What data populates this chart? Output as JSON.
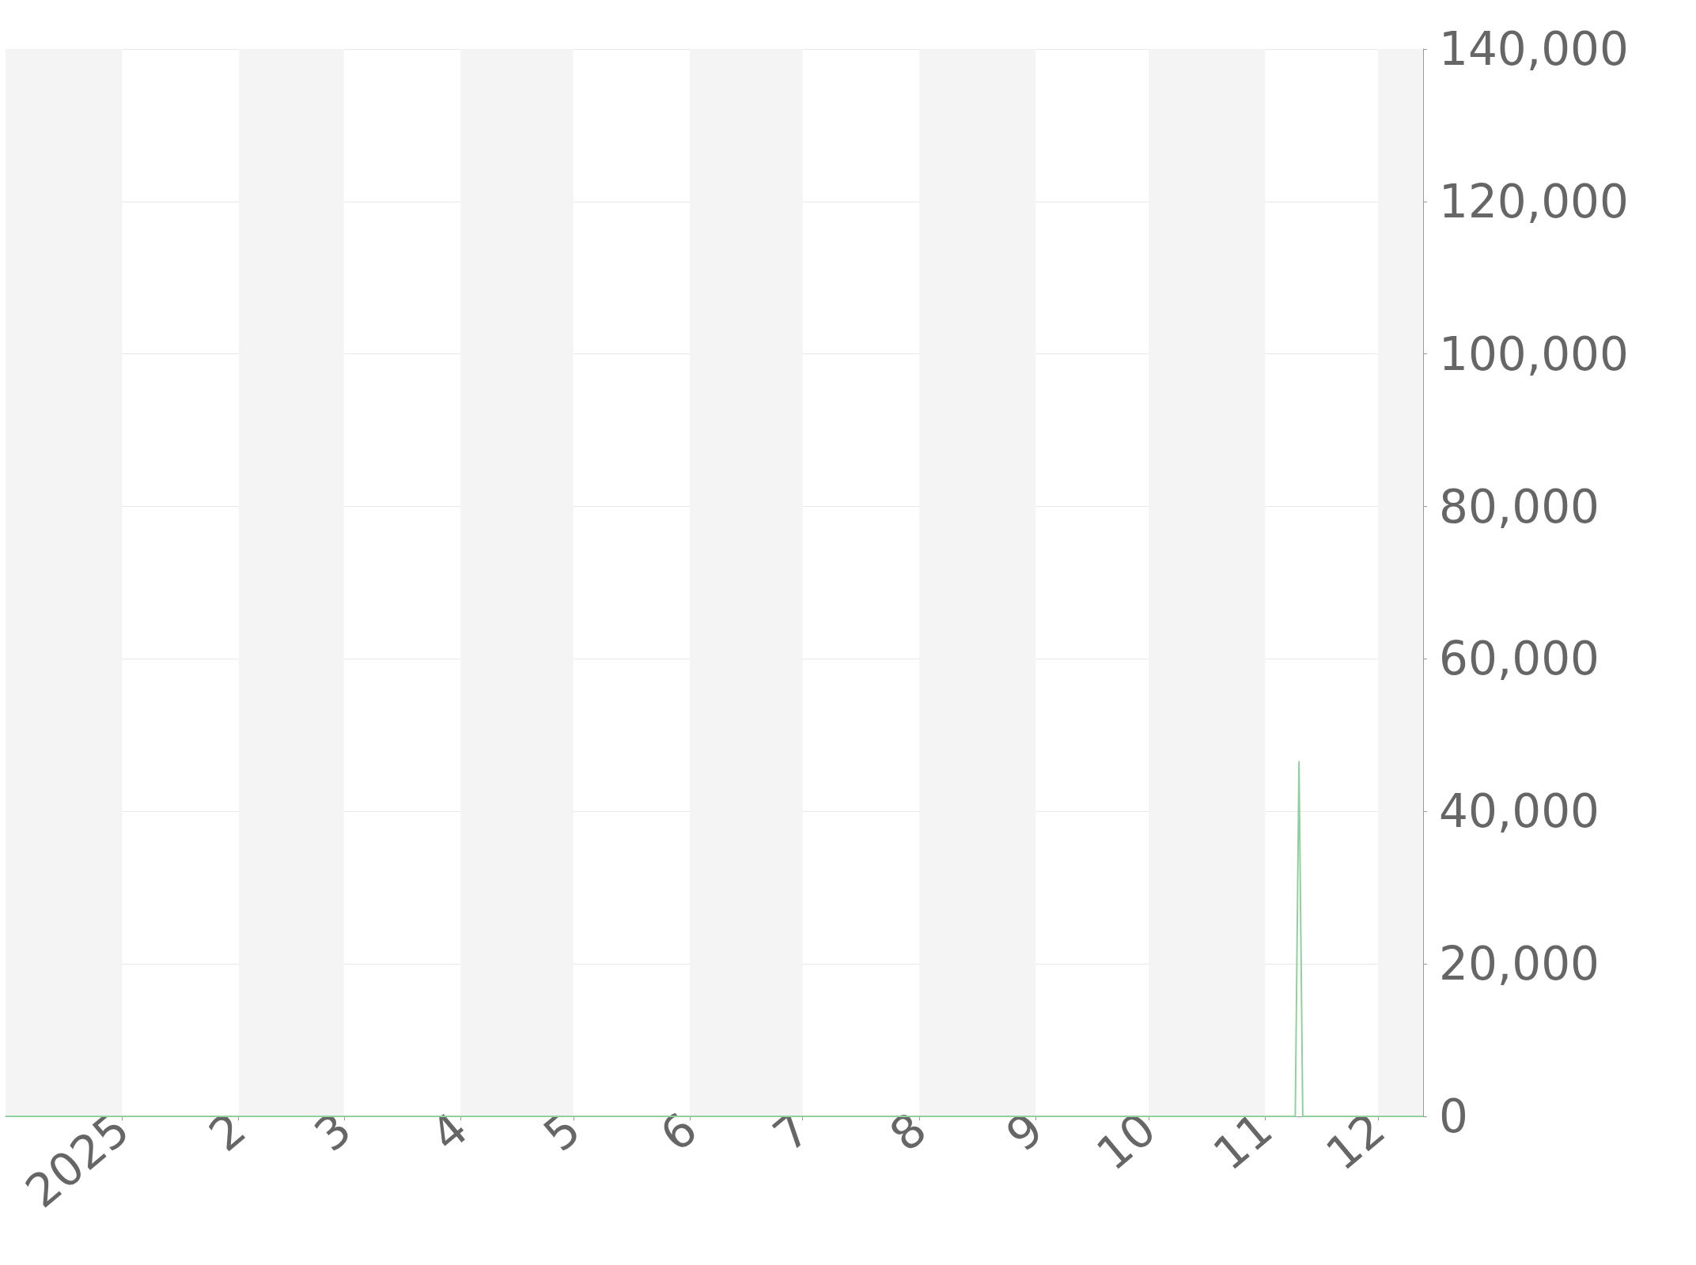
{
  "chart_data": {
    "type": "line",
    "x": [
      "2024-12-01",
      "2025-11-09",
      "2025-11-10",
      "2025-11-11",
      "2025-12-13"
    ],
    "series": [
      {
        "color": "#8fd19e",
        "values": [
          0,
          0,
          46500,
          0,
          0
        ]
      }
    ],
    "xlim": [
      "2024-12-01",
      "2025-12-13"
    ],
    "xticks": [
      {
        "value": "2025-01-01",
        "label": "2025"
      },
      {
        "value": "2025-02-01",
        "label": "2"
      },
      {
        "value": "2025-03-01",
        "label": "3"
      },
      {
        "value": "2025-04-01",
        "label": "4"
      },
      {
        "value": "2025-05-01",
        "label": "5"
      },
      {
        "value": "2025-06-01",
        "label": "6"
      },
      {
        "value": "2025-07-01",
        "label": "7"
      },
      {
        "value": "2025-08-01",
        "label": "8"
      },
      {
        "value": "2025-09-01",
        "label": "9"
      },
      {
        "value": "2025-10-01",
        "label": "10"
      },
      {
        "value": "2025-11-01",
        "label": "11"
      },
      {
        "value": "2025-12-01",
        "label": "12"
      }
    ],
    "ylim": [
      0,
      140000
    ],
    "yticks": [
      0,
      {
        "value": 20000,
        "label": "20,000"
      },
      {
        "value": 40000,
        "label": "40,000"
      },
      {
        "value": 60000,
        "label": "60,000"
      },
      {
        "value": 80000,
        "label": "80,000"
      },
      {
        "value": 100000,
        "label": "100,000"
      },
      {
        "value": 120000,
        "label": "120,000"
      },
      {
        "value": 140000,
        "label": "140,000"
      }
    ],
    "grid": "y",
    "marker": "none",
    "line_style": "solid",
    "bands": [
      {
        "axis": "x",
        "from": "2024-12-01",
        "to": "2025-01-01",
        "color": "#f4f4f4"
      },
      {
        "axis": "x",
        "from": "2025-02-01",
        "to": "2025-03-01",
        "color": "#f4f4f4"
      },
      {
        "axis": "x",
        "from": "2025-04-01",
        "to": "2025-05-01",
        "color": "#f4f4f4"
      },
      {
        "axis": "x",
        "from": "2025-06-01",
        "to": "2025-07-01",
        "color": "#f4f4f4"
      },
      {
        "axis": "x",
        "from": "2025-08-01",
        "to": "2025-09-01",
        "color": "#f4f4f4"
      },
      {
        "axis": "x",
        "from": "2025-10-01",
        "to": "2025-11-01",
        "color": "#f4f4f4"
      },
      {
        "axis": "x",
        "from": "2025-12-01",
        "to": "2025-12-13",
        "color": "#f4f4f4"
      }
    ]
  }
}
